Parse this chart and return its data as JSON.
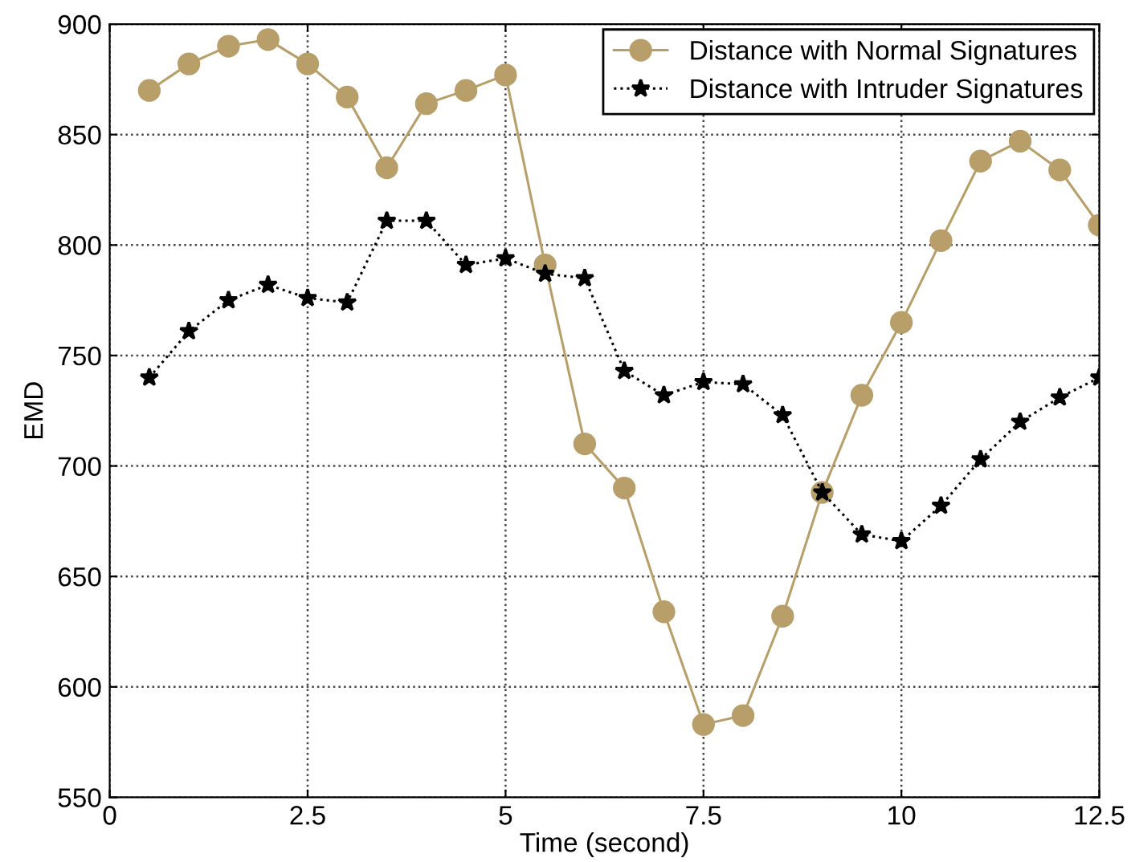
{
  "chart_data": {
    "type": "line",
    "xlabel": "Time (second)",
    "ylabel": "EMD",
    "x": [
      0.5,
      1,
      1.5,
      2,
      2.5,
      3,
      3.5,
      4,
      4.5,
      5,
      5.5,
      6,
      6.5,
      7,
      7.5,
      8,
      8.5,
      9,
      9.5,
      10,
      10.5,
      11,
      11.5,
      12,
      12.5
    ],
    "series": [
      {
        "name": "Distance with Normal Signatures",
        "color": "#b89f6a",
        "marker": "circle",
        "line_style": "solid",
        "values": [
          870,
          882,
          890,
          893,
          882,
          867,
          835,
          864,
          870,
          877,
          791,
          710,
          690,
          634,
          583,
          587,
          632,
          688,
          732,
          765,
          802,
          838,
          847,
          834,
          809
        ]
      },
      {
        "name": "Distance with Intruder Signatures",
        "color": "#000000",
        "marker": "star",
        "line_style": "dotted",
        "values": [
          740,
          761,
          775,
          782,
          776,
          774,
          811,
          811,
          791,
          794,
          787,
          785,
          743,
          732,
          738,
          737,
          723,
          688,
          669,
          666,
          682,
          703,
          720,
          731,
          740
        ]
      }
    ],
    "xlim": [
      0,
      12.5
    ],
    "xticks": [
      0,
      2.5,
      5,
      7.5,
      10,
      12.5
    ],
    "ylim": [
      550,
      900
    ],
    "yticks": [
      550,
      600,
      650,
      700,
      750,
      800,
      850,
      900
    ],
    "grid": true,
    "legend": "top right"
  }
}
